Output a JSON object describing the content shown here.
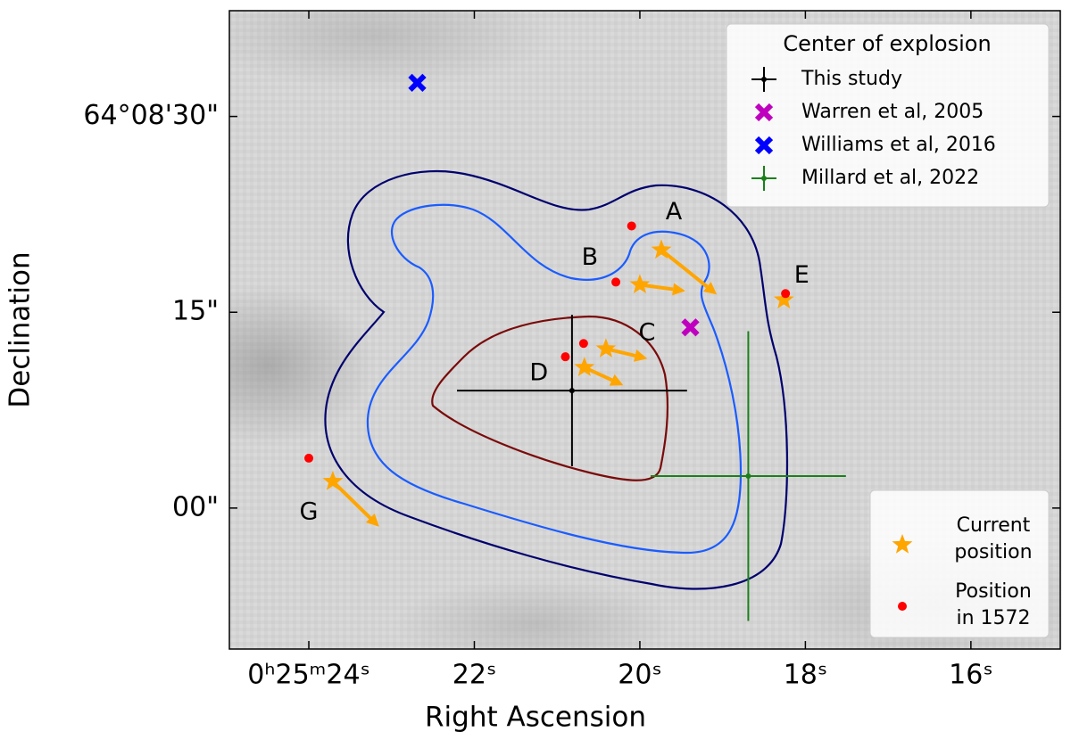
{
  "chart_data": {
    "type": "scatter",
    "xlabel": "Right Ascension",
    "ylabel": "Declination",
    "xlim": [
      24.96,
      14.92
    ],
    "ylim": [
      -10.8,
      38.1
    ],
    "xticks": [
      {
        "value": 24,
        "label": "0ʰ25ᵐ24ˢ"
      },
      {
        "value": 22,
        "label": "22ˢ"
      },
      {
        "value": 20,
        "label": "20ˢ"
      },
      {
        "value": 18,
        "label": "18ˢ"
      },
      {
        "value": 16,
        "label": "16ˢ"
      }
    ],
    "yticks": [
      {
        "value": 0,
        "label": "00\""
      },
      {
        "value": 15,
        "label": "15\""
      },
      {
        "value": 30,
        "label": "64°08'30\""
      }
    ],
    "legend_title": "Center of explosion",
    "series": [
      {
        "name": "This study",
        "color": "#000000",
        "marker": "o",
        "x": 20.82,
        "y": 9.0,
        "xerr": 1.39,
        "yerr": 5.8
      },
      {
        "name": "Warren et al, 2005",
        "color": "#bf00bf",
        "marker": "X",
        "x": 19.39,
        "y": 13.84
      },
      {
        "name": "Williams et al, 2016",
        "color": "#0000ff",
        "marker": "X",
        "x": 22.69,
        "y": 32.58
      },
      {
        "name": "Millard et al, 2022",
        "color": "#1a801a",
        "marker": "o",
        "x": 18.69,
        "y": 2.45,
        "xerr": 1.18,
        "yerr": 11.1
      }
    ],
    "stars": {
      "current_name": [
        "Current",
        "position"
      ],
      "past_name": [
        "Position",
        "in 1572"
      ],
      "color": "#ffa500",
      "past_color": "#ff0000",
      "labels": [
        "A",
        "B",
        "C",
        "D",
        "E",
        "G"
      ],
      "x": [
        19.74,
        20.0,
        20.41,
        20.67,
        18.26,
        23.71
      ],
      "y": [
        19.77,
        17.11,
        12.2,
        10.77,
        15.95,
        2.04
      ],
      "x1572": [
        20.1,
        20.29,
        20.68,
        20.9,
        18.24,
        24.0
      ],
      "y1572": [
        21.61,
        17.31,
        12.61,
        11.59,
        16.43,
        3.82
      ],
      "arrow_x": [
        19.07,
        19.45,
        19.91,
        20.2,
        null,
        23.15
      ],
      "arrow_y": [
        16.36,
        16.63,
        11.45,
        9.41,
        null,
        -1.43
      ]
    }
  }
}
